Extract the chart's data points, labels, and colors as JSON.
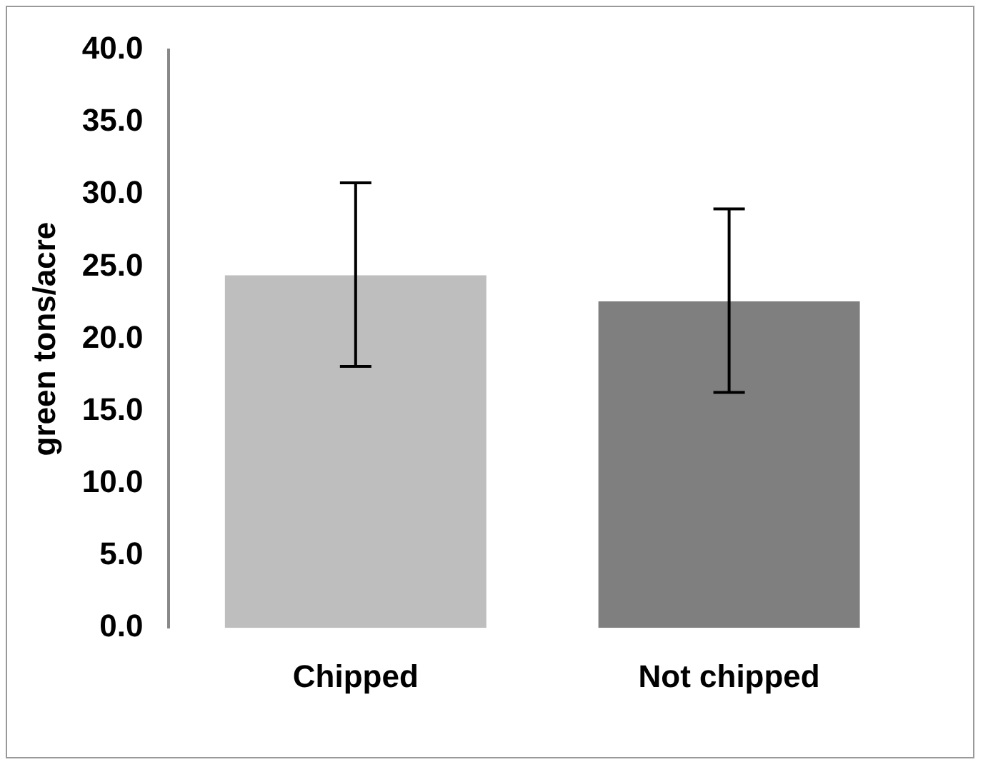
{
  "chart_data": {
    "type": "bar",
    "ylabel": "green tons/acre",
    "categories": [
      "Chipped",
      "Not chipped"
    ],
    "values": [
      24.4,
      22.6
    ],
    "colors": [
      "#bebebe",
      "#7f7f7f"
    ],
    "errors": [
      [
        18.1,
        30.8
      ],
      [
        16.3,
        29.0
      ]
    ],
    "ylim": [
      0,
      40
    ],
    "yticks": [
      {
        "value": 0,
        "label": "0.0"
      },
      {
        "value": 5,
        "label": "5.0"
      },
      {
        "value": 10,
        "label": "10.0"
      },
      {
        "value": 15,
        "label": "15.0"
      },
      {
        "value": 20,
        "label": "20.0"
      },
      {
        "value": 25,
        "label": "25.0"
      },
      {
        "value": 30,
        "label": "30.0"
      },
      {
        "value": 35,
        "label": "35.0"
      },
      {
        "value": 40,
        "label": "40.0"
      }
    ],
    "grid": false,
    "legend": false
  }
}
